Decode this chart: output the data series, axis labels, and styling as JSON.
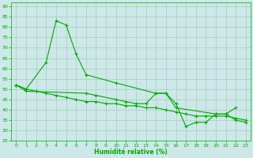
{
  "xlabel": "Humidité relative (%)",
  "xlim": [
    -0.5,
    23.5
  ],
  "ylim": [
    25,
    92
  ],
  "yticks": [
    25,
    30,
    35,
    40,
    45,
    50,
    55,
    60,
    65,
    70,
    75,
    80,
    85,
    90
  ],
  "xticks": [
    0,
    1,
    2,
    3,
    4,
    5,
    6,
    7,
    8,
    9,
    10,
    11,
    12,
    13,
    14,
    15,
    16,
    17,
    18,
    19,
    20,
    21,
    22,
    23
  ],
  "background_color": "#cce8e8",
  "grid_color": "#aaccbb",
  "line_color": "#00aa00",
  "line_series": [
    {
      "x": [
        0,
        1,
        3,
        4,
        5,
        6,
        7,
        10,
        14,
        15,
        16,
        17,
        18,
        19,
        20,
        21,
        22,
        23
      ],
      "y": [
        52,
        50,
        63,
        83,
        81,
        67,
        57,
        53,
        48,
        48,
        43,
        32,
        34,
        34,
        38,
        38,
        35,
        34
      ]
    },
    {
      "x": [
        0,
        1,
        7,
        8,
        10,
        11,
        12,
        13,
        14,
        15,
        16,
        20,
        21,
        22
      ],
      "y": [
        52,
        49,
        48,
        47,
        45,
        44,
        43,
        43,
        48,
        48,
        41,
        38,
        38,
        41
      ]
    },
    {
      "x": [
        0,
        1,
        2,
        3,
        4,
        5,
        6,
        7,
        8,
        9,
        10,
        11,
        12,
        13,
        14,
        15,
        16,
        17,
        18,
        19,
        20,
        21,
        22,
        23
      ],
      "y": [
        52,
        50,
        49,
        48,
        47,
        46,
        45,
        44,
        44,
        43,
        43,
        42,
        42,
        41,
        41,
        40,
        39,
        38,
        37,
        37,
        37,
        37,
        36,
        35
      ]
    }
  ]
}
